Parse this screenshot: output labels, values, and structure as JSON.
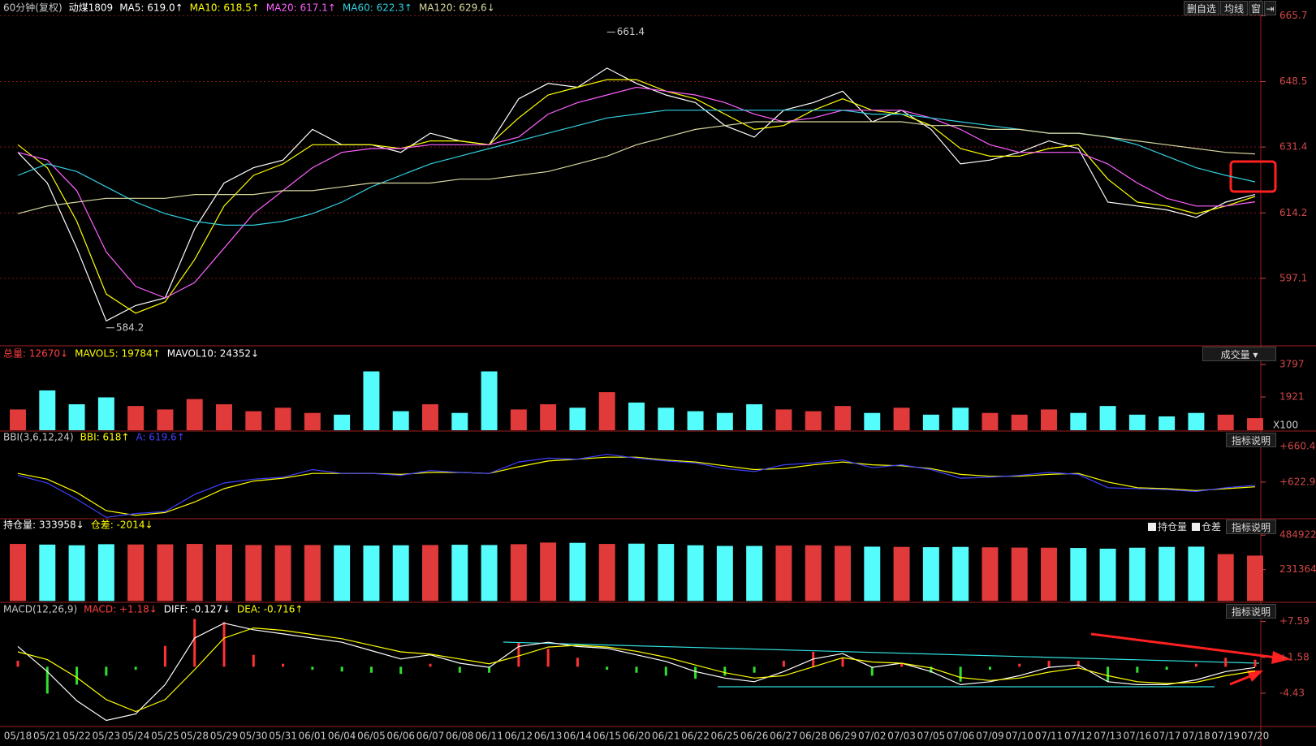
{
  "chart_data": [
    {
      "type": "line",
      "title": "60分钟(复权)",
      "subtitle": "动煤1809",
      "grid": true,
      "categories": [
        "05/18",
        "05/21",
        "05/22",
        "05/23",
        "05/24",
        "05/25",
        "05/28",
        "05/29",
        "05/30",
        "05/31",
        "06/01",
        "06/04",
        "06/05",
        "06/06",
        "06/07",
        "06/08",
        "06/11",
        "06/12",
        "06/13",
        "06/14",
        "06/15",
        "06/20",
        "06/21",
        "06/22",
        "06/25",
        "06/26",
        "06/27",
        "06/28",
        "06/29",
        "07/02",
        "07/03",
        "07/05",
        "07/06",
        "07/09",
        "07/10",
        "07/11",
        "07/12",
        "07/13",
        "07/16",
        "07/17",
        "07/18",
        "07/19",
        "07/20"
      ],
      "ylim": [
        579.7,
        668.1
      ],
      "yticks": [
        597.1,
        614.2,
        631.4,
        648.5,
        665.7
      ],
      "annotations": [
        {
          "category": "06/15",
          "value": 661.4
        },
        {
          "category": "05/23",
          "value": 584.2
        }
      ],
      "series": [
        {
          "name": "MA5: 619.0↑",
          "color": "#ffffff",
          "values": [
            630,
            622,
            605,
            586,
            590,
            592,
            610,
            622,
            626,
            628,
            636,
            632,
            632,
            630,
            635,
            633,
            632,
            644,
            648,
            647,
            652,
            648,
            645,
            643,
            637,
            634,
            641,
            643,
            646,
            638,
            641,
            636,
            627,
            628,
            630,
            633,
            631,
            617,
            616,
            615,
            613,
            617,
            619.0
          ]
        },
        {
          "name": "MA10: 618.5↑",
          "color": "#ffff00",
          "values": [
            632,
            626,
            612,
            593,
            588,
            591,
            602,
            616,
            624,
            627,
            632,
            632,
            632,
            631,
            633,
            633,
            632,
            639,
            645,
            647,
            649,
            649,
            646,
            644,
            640,
            636,
            637,
            641,
            644,
            641,
            640,
            637,
            631,
            629,
            629,
            631,
            632,
            623,
            617,
            616,
            614,
            616,
            618.5
          ]
        },
        {
          "name": "MA20: 617.1↑",
          "color": "#ff60ff",
          "values": [
            630,
            628,
            620,
            604,
            595,
            592,
            596,
            605,
            614,
            620,
            626,
            630,
            631,
            631,
            632,
            632,
            632,
            634,
            640,
            643,
            645,
            647,
            646,
            645,
            643,
            640,
            638,
            639,
            641,
            641,
            641,
            639,
            636,
            632,
            630,
            630,
            630,
            627,
            622,
            618,
            616,
            616,
            617.1
          ]
        },
        {
          "name": "MA60: 622.3↑",
          "color": "#30d0e0",
          "values": [
            624,
            627,
            625,
            621,
            617,
            614,
            612,
            611,
            611,
            612,
            614,
            617,
            621,
            624,
            627,
            629,
            631,
            633,
            635,
            637,
            639,
            640,
            641,
            641,
            641,
            641,
            641,
            641,
            641,
            640,
            640,
            639,
            638,
            637,
            636,
            635,
            635,
            634,
            632,
            629,
            626,
            624,
            622.3
          ]
        },
        {
          "name": "MA120: 629.6↓",
          "color": "#d8d8a0",
          "values": [
            614,
            616,
            617,
            618,
            618,
            618,
            619,
            619,
            619,
            620,
            620,
            621,
            622,
            622,
            622,
            623,
            623,
            624,
            625,
            627,
            629,
            632,
            634,
            636,
            637,
            638,
            638,
            638,
            638,
            638,
            638,
            637,
            637,
            636,
            636,
            635,
            635,
            634,
            633,
            632,
            631,
            630,
            629.6
          ]
        }
      ]
    },
    {
      "type": "bar",
      "unit_label": "X100",
      "ylim": [
        0,
        4690
      ],
      "yticks": [
        1921,
        3797
      ],
      "legend": [
        {
          "text": "总量: 12670↓",
          "color": "#ff4040"
        },
        {
          "text": "MAVOL5: 19784↑",
          "color": "#ffff00"
        },
        {
          "text": "MAVOL10: 24352↓",
          "color": "#ffffff"
        }
      ],
      "values": [
        1200,
        2300,
        1500,
        1900,
        1400,
        1200,
        1800,
        1500,
        1100,
        1300,
        1000,
        900,
        3400,
        1100,
        1500,
        1000,
        3400,
        1200,
        1500,
        1300,
        2200,
        1600,
        1300,
        1100,
        1000,
        1500,
        1200,
        1100,
        1400,
        1000,
        1300,
        900,
        1300,
        1000,
        900,
        1200,
        1000,
        1400,
        900,
        800,
        1000,
        900,
        700
      ],
      "colors": [
        "#e03a3a",
        "#54fcfc",
        "#54fcfc",
        "#54fcfc",
        "#e03a3a",
        "#e03a3a",
        "#e03a3a",
        "#e03a3a",
        "#e03a3a",
        "#e03a3a",
        "#e03a3a",
        "#54fcfc",
        "#54fcfc",
        "#54fcfc",
        "#e03a3a",
        "#54fcfc",
        "#54fcfc",
        "#e03a3a",
        "#e03a3a",
        "#54fcfc",
        "#e03a3a",
        "#54fcfc",
        "#54fcfc",
        "#54fcfc",
        "#54fcfc",
        "#54fcfc",
        "#e03a3a",
        "#e03a3a",
        "#e03a3a",
        "#54fcfc",
        "#e03a3a",
        "#54fcfc",
        "#54fcfc",
        "#e03a3a",
        "#e03a3a",
        "#e03a3a",
        "#54fcfc",
        "#54fcfc",
        "#54fcfc",
        "#54fcfc",
        "#54fcfc",
        "#e03a3a",
        "#e03a3a"
      ]
    },
    {
      "type": "line",
      "title": "BBI(3,6,12,24)",
      "ylim": [
        585.4,
        674.7
      ],
      "yticks": [
        {
          "value": 660.4,
          "label": "+660.4"
        },
        {
          "value": 622.9,
          "label": "+622.9"
        }
      ],
      "series": [
        {
          "name": "BBI: 618↑",
          "color": "#ffff00",
          "values": [
            632,
            626,
            612,
            593,
            588,
            591,
            602,
            616,
            624,
            627,
            632,
            632,
            632,
            631,
            633,
            633,
            632,
            639,
            645,
            647,
            649,
            649,
            646,
            644,
            640,
            636,
            637,
            641,
            644,
            641,
            640,
            637,
            631,
            629,
            629,
            631,
            632,
            623,
            617,
            616,
            614,
            616,
            618
          ]
        },
        {
          "name": "A: 619.6↑",
          "color": "#4040ff",
          "values": [
            630,
            622,
            605,
            586,
            590,
            592,
            610,
            622,
            626,
            628,
            636,
            632,
            632,
            630,
            635,
            633,
            632,
            644,
            648,
            647,
            652,
            648,
            645,
            643,
            637,
            634,
            641,
            643,
            646,
            638,
            641,
            636,
            627,
            628,
            630,
            633,
            631,
            617,
            616,
            615,
            613,
            617,
            619.6
          ]
        }
      ]
    },
    {
      "type": "bar",
      "ylim": [
        -4000,
        593600
      ],
      "yticks": [
        231364,
        484922
      ],
      "legend": [
        {
          "text": "持仓量: 333958↓",
          "color": "#ffffff"
        },
        {
          "text": "仓差: -2014↓",
          "color": "#ffff00"
        }
      ],
      "values": [
        420000,
        415000,
        410000,
        418000,
        416000,
        417000,
        420000,
        415000,
        412000,
        410000,
        412000,
        410000,
        408000,
        410000,
        412000,
        414000,
        412000,
        418000,
        430000,
        428000,
        420000,
        422000,
        420000,
        410000,
        405000,
        405000,
        408000,
        410000,
        406000,
        400000,
        398000,
        396000,
        398000,
        395000,
        393000,
        392000,
        390000,
        385000,
        392000,
        398000,
        400000,
        345000,
        333958
      ],
      "colors": [
        "#e03a3a",
        "#54fcfc",
        "#54fcfc",
        "#54fcfc",
        "#e03a3a",
        "#e03a3a",
        "#e03a3a",
        "#e03a3a",
        "#e03a3a",
        "#e03a3a",
        "#e03a3a",
        "#54fcfc",
        "#54fcfc",
        "#54fcfc",
        "#e03a3a",
        "#54fcfc",
        "#54fcfc",
        "#e03a3a",
        "#e03a3a",
        "#54fcfc",
        "#e03a3a",
        "#54fcfc",
        "#54fcfc",
        "#54fcfc",
        "#54fcfc",
        "#54fcfc",
        "#e03a3a",
        "#e03a3a",
        "#e03a3a",
        "#54fcfc",
        "#e03a3a",
        "#54fcfc",
        "#54fcfc",
        "#e03a3a",
        "#e03a3a",
        "#e03a3a",
        "#54fcfc",
        "#54fcfc",
        "#54fcfc",
        "#54fcfc",
        "#54fcfc",
        "#e03a3a",
        "#e03a3a"
      ]
    },
    {
      "type": "line",
      "title": "MACD(12,26,9)",
      "ylim": [
        -9.88,
        10.39
      ],
      "yticks": [
        {
          "value": 7.59,
          "label": "+7.59"
        },
        {
          "value": 1.58,
          "label": "+1.58"
        },
        {
          "value": -4.43,
          "label": "-4.43"
        }
      ],
      "series": [
        {
          "name": "MACD: +1.18↓",
          "style": "histogram",
          "pos_color": "#ff3232",
          "neg_color": "#30e030",
          "color": "#ff4040",
          "values": [
            1.0,
            -4.5,
            -3.0,
            -1.5,
            -0.5,
            3.5,
            8.0,
            7.5,
            2.0,
            0.5,
            -0.5,
            -0.8,
            -1.0,
            -1.2,
            0.5,
            -1.0,
            -1.0,
            4.0,
            3.0,
            1.5,
            -0.5,
            -1.0,
            -1.5,
            -2.0,
            -1.5,
            -1.0,
            1.0,
            2.5,
            1.5,
            -1.5,
            0.5,
            -1.0,
            -2.5,
            -0.5,
            0.5,
            1.0,
            1.0,
            -2.5,
            -1.0,
            -0.5,
            0.5,
            1.5,
            1.18
          ]
        },
        {
          "name": "DIFF: -0.127↓",
          "color": "#ffffff",
          "values": [
            3.4,
            -0.8,
            -5.7,
            -9.0,
            -7.9,
            -3.0,
            4.8,
            7.3,
            6.2,
            5.5,
            4.8,
            4.1,
            2.7,
            1.3,
            2.0,
            0.6,
            -0.1,
            3.4,
            4.1,
            3.4,
            3.1,
            2.0,
            0.9,
            -0.8,
            -1.9,
            -2.5,
            -0.8,
            1.3,
            2.2,
            -0.1,
            0.6,
            -0.8,
            -3.0,
            -2.5,
            -1.5,
            -0.1,
            0.3,
            -2.5,
            -3.0,
            -3.0,
            -2.2,
            -0.8,
            -0.127
          ]
        },
        {
          "name": "DEA: -0.716↑",
          "color": "#ffff00",
          "values": [
            2.5,
            1.2,
            -1.8,
            -5.5,
            -7.5,
            -5.5,
            -0.5,
            4.8,
            6.5,
            6.1,
            5.4,
            4.7,
            3.6,
            2.5,
            2.1,
            1.3,
            0.5,
            1.8,
            3.3,
            3.6,
            3.3,
            2.6,
            1.6,
            0.3,
            -1.0,
            -1.9,
            -1.5,
            0.0,
            1.5,
            0.8,
            0.6,
            -0.2,
            -1.8,
            -2.3,
            -1.9,
            -0.9,
            -0.2,
            -1.5,
            -2.5,
            -2.8,
            -2.6,
            -1.5,
            -0.716
          ]
        }
      ]
    }
  ],
  "ui": {
    "toolbar": [
      "删自选",
      "均线",
      "窗"
    ],
    "volume_menu": "成交量",
    "help": [
      "指标说明",
      "指标说明",
      "指标说明"
    ],
    "checks": [
      "持仓量",
      "仓差"
    ]
  }
}
